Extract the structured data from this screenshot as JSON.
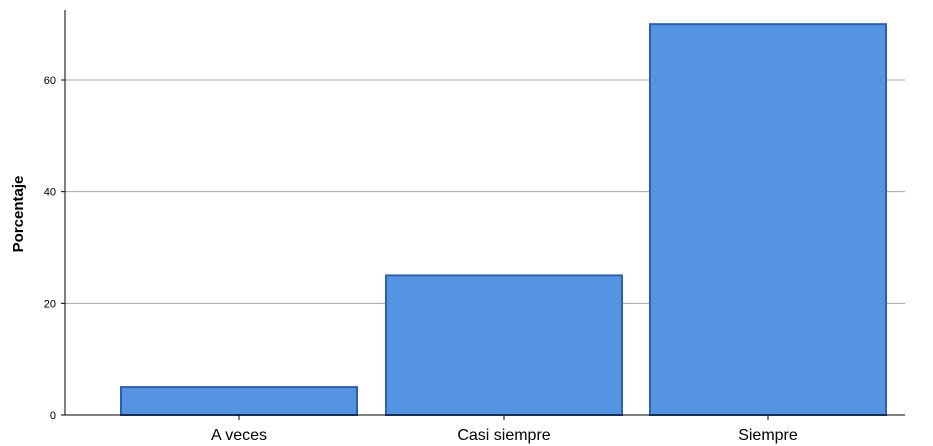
{
  "chart_data": {
    "type": "bar",
    "title": "",
    "xlabel": "",
    "ylabel": "Porcentaje",
    "categories": [
      "A veces",
      "Casi siempre",
      "Siempre"
    ],
    "values": [
      5,
      25,
      70
    ],
    "ylim": [
      0,
      73
    ],
    "yticks": [
      0,
      20,
      40,
      60
    ],
    "grid": "horizontal",
    "legend": "none",
    "colors": {
      "bar_fill": "#5594e3",
      "bar_stroke": "#2f5fa8",
      "grid": "#a6a6a6",
      "axis": "#000000"
    }
  }
}
